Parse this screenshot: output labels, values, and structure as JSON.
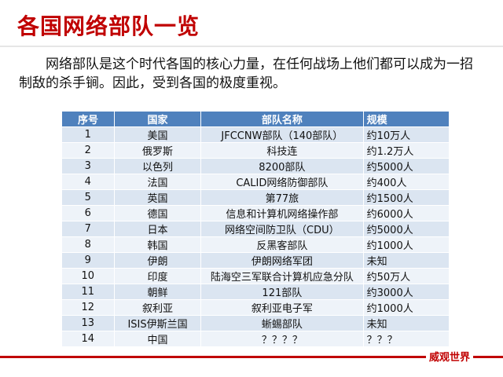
{
  "header": {
    "title": "各国网络部队一览"
  },
  "intro": "网络部队是这个时代各国的核心力量，在任何战场上他们都可以成为一招制敌的杀手锏。因此，受到各国的极度重视。",
  "table": {
    "columns": [
      "序号",
      "国家",
      "部队名称",
      "规模"
    ],
    "rows": [
      [
        "1",
        "美国",
        "JFCCNW部队（140部队）",
        "约10万人"
      ],
      [
        "2",
        "俄罗斯",
        "科技连",
        "约1.2万人"
      ],
      [
        "3",
        "以色列",
        "8200部队",
        "约5000人"
      ],
      [
        "4",
        "法国",
        "CALID网络防御部队",
        "约400人"
      ],
      [
        "5",
        "英国",
        "第77旅",
        "约1500人"
      ],
      [
        "6",
        "德国",
        "信息和计算机网络操作部",
        "约6000人"
      ],
      [
        "7",
        "日本",
        "网络空间防卫队（CDU）",
        "约5000人"
      ],
      [
        "8",
        "韩国",
        "反黑客部队",
        "约1000人"
      ],
      [
        "9",
        "伊朗",
        "伊朗网络军团",
        "未知"
      ],
      [
        "10",
        "印度",
        "陆海空三军联合计算机应急分队",
        "约50万人"
      ],
      [
        "11",
        "朝鲜",
        "121部队",
        "约3000人"
      ],
      [
        "12",
        "叙利亚",
        "叙利亚电子军",
        "约1000人"
      ],
      [
        "13",
        "ISIS伊斯兰国",
        "蜥蜴部队",
        "未知"
      ],
      [
        "14",
        "中国",
        "？？？？",
        "？？？"
      ]
    ]
  },
  "watermark": "威观世界"
}
